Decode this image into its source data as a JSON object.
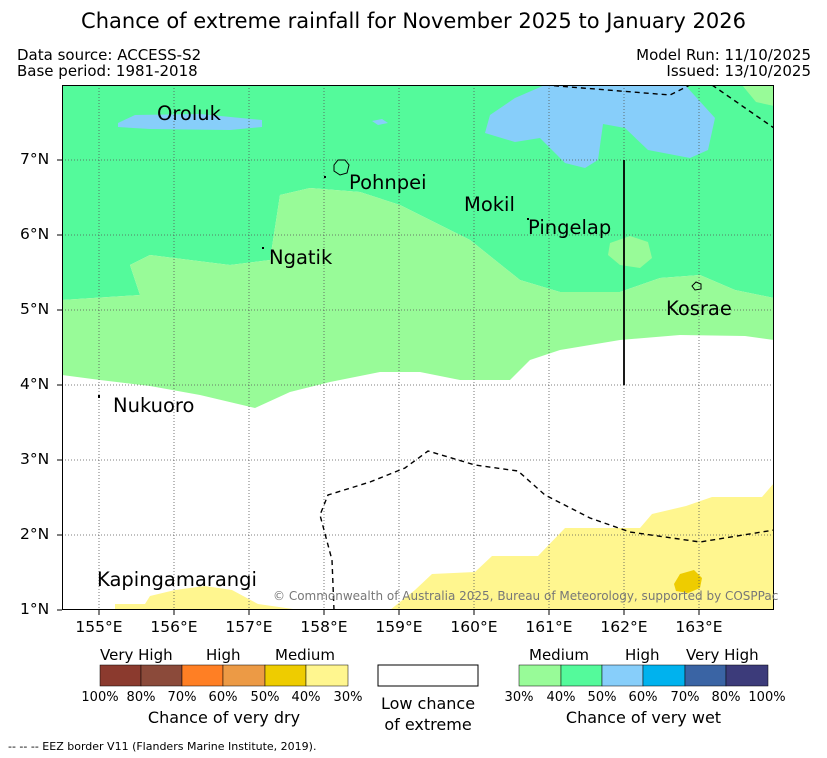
{
  "title": "Chance of extreme rainfall for November 2025 to January 2026",
  "meta": {
    "data_source": "Data source: ACCESS-S2",
    "base_period": "Base period: 1981-2018",
    "model_run": "Model Run: 11/10/2025",
    "issued": "Issued: 13/10/2025"
  },
  "map": {
    "places": [
      "Oroluk",
      "Pohnpei",
      "Mokil",
      "Pingelap",
      "Ngatik",
      "Kosrae",
      "Nukuoro",
      "Kapingamarangi"
    ],
    "lat_labels": [
      "7°N",
      "6°N",
      "5°N",
      "4°N",
      "3°N",
      "2°N",
      "1°N"
    ],
    "lon_labels": [
      "155°E",
      "156°E",
      "157°E",
      "158°E",
      "159°E",
      "160°E",
      "161°E",
      "162°E",
      "163°E"
    ],
    "copyright": "© Commonwealth of Australia 2025, Bureau of Meteorology, supported by COSPPac"
  },
  "legend_dry": {
    "groups": [
      "Very High",
      "High",
      "Medium"
    ],
    "ticks": [
      "100%",
      "80%",
      "70%",
      "60%",
      "50%",
      "40%",
      "30%"
    ],
    "colors": [
      "#8b3a2e",
      "#8b4a3a",
      "#ff7f24",
      "#ec9a45",
      "#eecc00",
      "#fff68f"
    ],
    "caption": "Chance of very dry"
  },
  "legend_low": {
    "line1": "Low chance",
    "line2": "of extreme"
  },
  "legend_wet": {
    "groups": [
      "Medium",
      "High",
      "Very High"
    ],
    "ticks": [
      "30%",
      "40%",
      "50%",
      "60%",
      "70%",
      "80%",
      "100%"
    ],
    "colors": [
      "#98fb98",
      "#54fa9b",
      "#87cefa",
      "#00b2ee",
      "#3a64a4",
      "#3c3b7a"
    ],
    "caption": "Chance of very wet"
  },
  "footer": "--  --  -- EEZ border V11 (Flanders Marine Institute, 2019)."
}
